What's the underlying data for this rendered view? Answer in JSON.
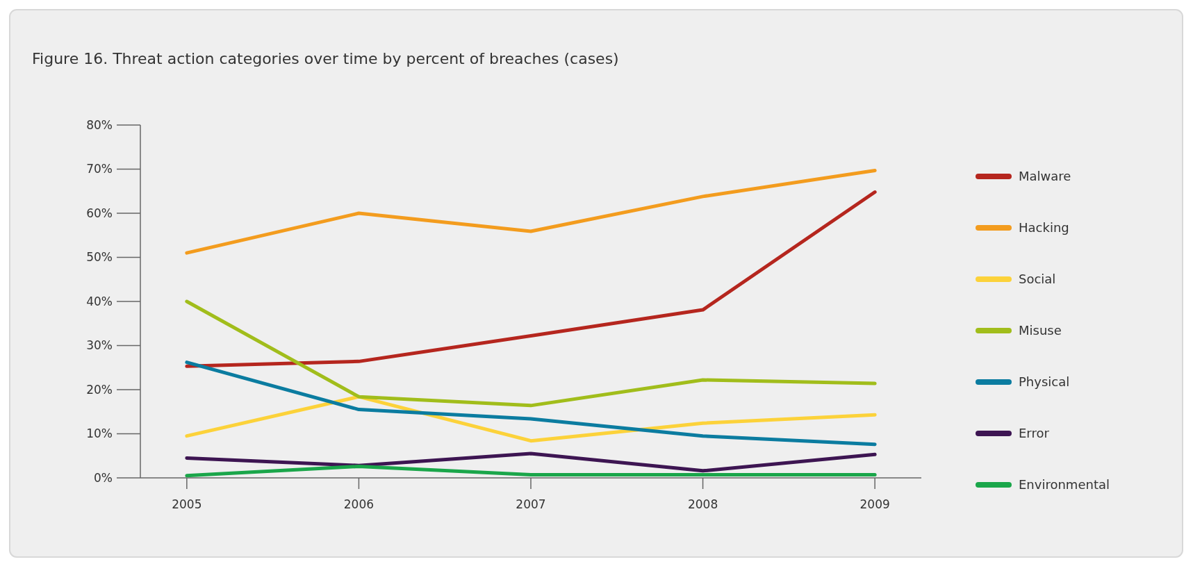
{
  "chart_data": {
    "type": "line",
    "title": "Figure 16. Threat action categories over time by percent of breaches (cases)",
    "categories": [
      "2005",
      "2006",
      "2007",
      "2008",
      "2009"
    ],
    "ylim": [
      0,
      80
    ],
    "yticks": [
      {
        "value": 0,
        "label": "0%"
      },
      {
        "value": 10,
        "label": "10%"
      },
      {
        "value": 20,
        "label": "20%"
      },
      {
        "value": 30,
        "label": "30%"
      },
      {
        "value": 40,
        "label": "40%"
      },
      {
        "value": 50,
        "label": "50%"
      },
      {
        "value": 60,
        "label": "60%"
      },
      {
        "value": 70,
        "label": "70%"
      },
      {
        "value": 80,
        "label": "80%"
      }
    ],
    "grid": false,
    "legend": "right",
    "marker": "none",
    "line_style": "solid",
    "series": [
      {
        "name": "Malware",
        "color": "#b5261e",
        "values": [
          25.3,
          26.4,
          32.2,
          38.1,
          64.8
        ]
      },
      {
        "name": "Hacking",
        "color": "#f39c1e",
        "values": [
          51,
          60,
          55.9,
          63.8,
          69.7
        ]
      },
      {
        "name": "Social",
        "color": "#fcd23a",
        "values": [
          9.5,
          18.4,
          8.4,
          12.4,
          14.3
        ]
      },
      {
        "name": "Misuse",
        "color": "#a1bd1b",
        "values": [
          40,
          18.4,
          16.4,
          22.2,
          21.4
        ]
      },
      {
        "name": "Physical",
        "color": "#0b7ca0",
        "values": [
          26.2,
          15.5,
          13.4,
          9.5,
          7.6
        ]
      },
      {
        "name": "Error",
        "color": "#3d1552",
        "values": [
          4.5,
          2.8,
          5.5,
          1.6,
          5.3
        ]
      },
      {
        "name": "Environmental",
        "color": "#1aa64a",
        "values": [
          0.5,
          2.6,
          0.7,
          0.7,
          0.7
        ]
      }
    ]
  }
}
